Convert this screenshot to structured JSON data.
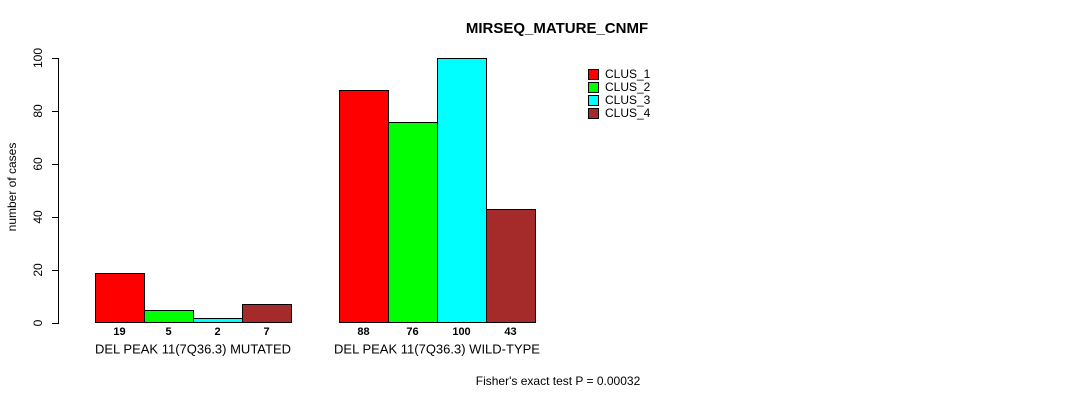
{
  "chart_data": {
    "type": "bar",
    "title": "MIRSEQ_MATURE_CNMF",
    "ylabel": "number of cases",
    "xlabel": "",
    "ylim": [
      0,
      100
    ],
    "yticks": [
      0,
      20,
      40,
      60,
      80,
      100
    ],
    "grid": false,
    "legend_position": "top-right",
    "bar_value_labels": true,
    "categories": [
      "DEL PEAK 11(7Q36.3) MUTATED",
      "DEL PEAK 11(7Q36.3) WILD-TYPE"
    ],
    "series": [
      {
        "name": "CLUS_1",
        "color": "#ff0000",
        "values": [
          19,
          88
        ]
      },
      {
        "name": "CLUS_2",
        "color": "#00ff00",
        "values": [
          5,
          76
        ]
      },
      {
        "name": "CLUS_3",
        "color": "#00ffff",
        "values": [
          2,
          100
        ]
      },
      {
        "name": "CLUS_4",
        "color": "#a52a2a",
        "values": [
          7,
          43
        ]
      }
    ],
    "annotation": "Fisher's exact test P = 0.00032"
  }
}
